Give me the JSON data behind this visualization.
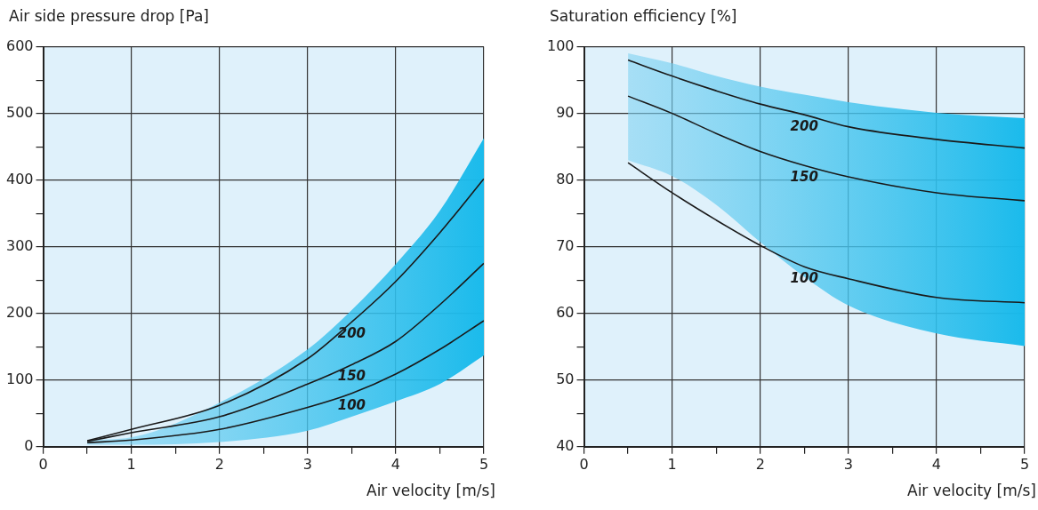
{
  "chart_data": [
    {
      "type": "line",
      "ylabel": "Air side pressure drop [Pa]",
      "xlabel": "Air velocity [m/s]",
      "xlim": [
        0,
        5
      ],
      "ylim": [
        0,
        600
      ],
      "xticks": [
        0,
        {
          "value": 0.5,
          "label": null
        },
        1,
        {
          "value": 1.5,
          "label": null
        },
        2,
        {
          "value": 2.5,
          "label": null
        },
        3,
        {
          "value": 3.5,
          "label": null
        },
        4,
        {
          "value": 4.5,
          "label": null
        },
        5
      ],
      "yticks": [
        0,
        {
          "value": 50,
          "label": null
        },
        100,
        {
          "value": 150,
          "label": null
        },
        200,
        {
          "value": 250,
          "label": null
        },
        300,
        {
          "value": 350,
          "label": null
        },
        400,
        {
          "value": 450,
          "label": null
        },
        500,
        {
          "value": 550,
          "label": null
        },
        600
      ],
      "grid": true,
      "legend": false,
      "series": [
        {
          "name": "200",
          "color": "#1a1a1a",
          "x": [
            0.5,
            1,
            2,
            3,
            3.5,
            4,
            4.5,
            5
          ],
          "values": [
            9,
            26,
            62,
            132,
            187,
            248,
            321,
            402
          ]
        },
        {
          "name": "150",
          "color": "#1a1a1a",
          "x": [
            0.5,
            1,
            2,
            3,
            3.5,
            4,
            4.5,
            5
          ],
          "values": [
            8,
            21,
            45,
            94,
            123,
            158,
            213,
            275
          ],
          "lower": [
            3,
            3,
            7,
            24,
            45,
            68,
            94,
            137
          ],
          "upper": [
            10,
            14,
            66,
            146,
            205,
            274,
            354,
            463
          ]
        },
        {
          "name": "100",
          "color": "#1a1a1a",
          "x": [
            0.5,
            1,
            2,
            3,
            3.5,
            4,
            4.5,
            5
          ],
          "values": [
            6,
            10,
            26,
            59,
            80,
            109,
            146,
            189
          ]
        }
      ]
    },
    {
      "type": "line",
      "ylabel": "Saturation efficiency [%]",
      "xlabel": "Air velocity [m/s]",
      "xlim": [
        0,
        5
      ],
      "ylim": [
        40,
        100
      ],
      "xticks": [
        0,
        {
          "value": 0.5,
          "label": null
        },
        1,
        {
          "value": 1.5,
          "label": null
        },
        2,
        {
          "value": 2.5,
          "label": null
        },
        3,
        {
          "value": 3.5,
          "label": null
        },
        4,
        {
          "value": 4.5,
          "label": null
        },
        5
      ],
      "yticks": [
        40,
        {
          "value": 45,
          "label": null
        },
        50,
        {
          "value": 55,
          "label": null
        },
        60,
        {
          "value": 65,
          "label": null
        },
        70,
        {
          "value": 75,
          "label": null
        },
        80,
        {
          "value": 85,
          "label": null
        },
        90,
        {
          "value": 95,
          "label": null
        },
        100
      ],
      "grid": true,
      "legend": false,
      "series": [
        {
          "name": "200",
          "color": "#1a1a1a",
          "x": [
            0.5,
            1,
            1.5,
            2,
            2.5,
            3,
            4,
            5
          ],
          "values": [
            98,
            95.6,
            93.4,
            91.4,
            89.8,
            88,
            86.1,
            84.8
          ]
        },
        {
          "name": "150",
          "color": "#1a1a1a",
          "x": [
            0.5,
            1,
            1.5,
            2,
            2.5,
            3,
            4,
            5
          ],
          "values": [
            92.6,
            90,
            87,
            84.3,
            82.2,
            80.5,
            78.1,
            76.9
          ],
          "lower": [
            83,
            80.6,
            76.3,
            70.7,
            65.5,
            61.2,
            57,
            55.1
          ],
          "upper": [
            99,
            97.5,
            95.6,
            94,
            92.8,
            91.7,
            90.1,
            89.3
          ]
        },
        {
          "name": "100",
          "color": "#1a1a1a",
          "x": [
            0.5,
            1,
            1.5,
            2,
            2.5,
            3,
            4,
            5
          ],
          "values": [
            82.6,
            78.1,
            74,
            70.2,
            67,
            65.2,
            62.4,
            61.6
          ]
        }
      ]
    }
  ]
}
